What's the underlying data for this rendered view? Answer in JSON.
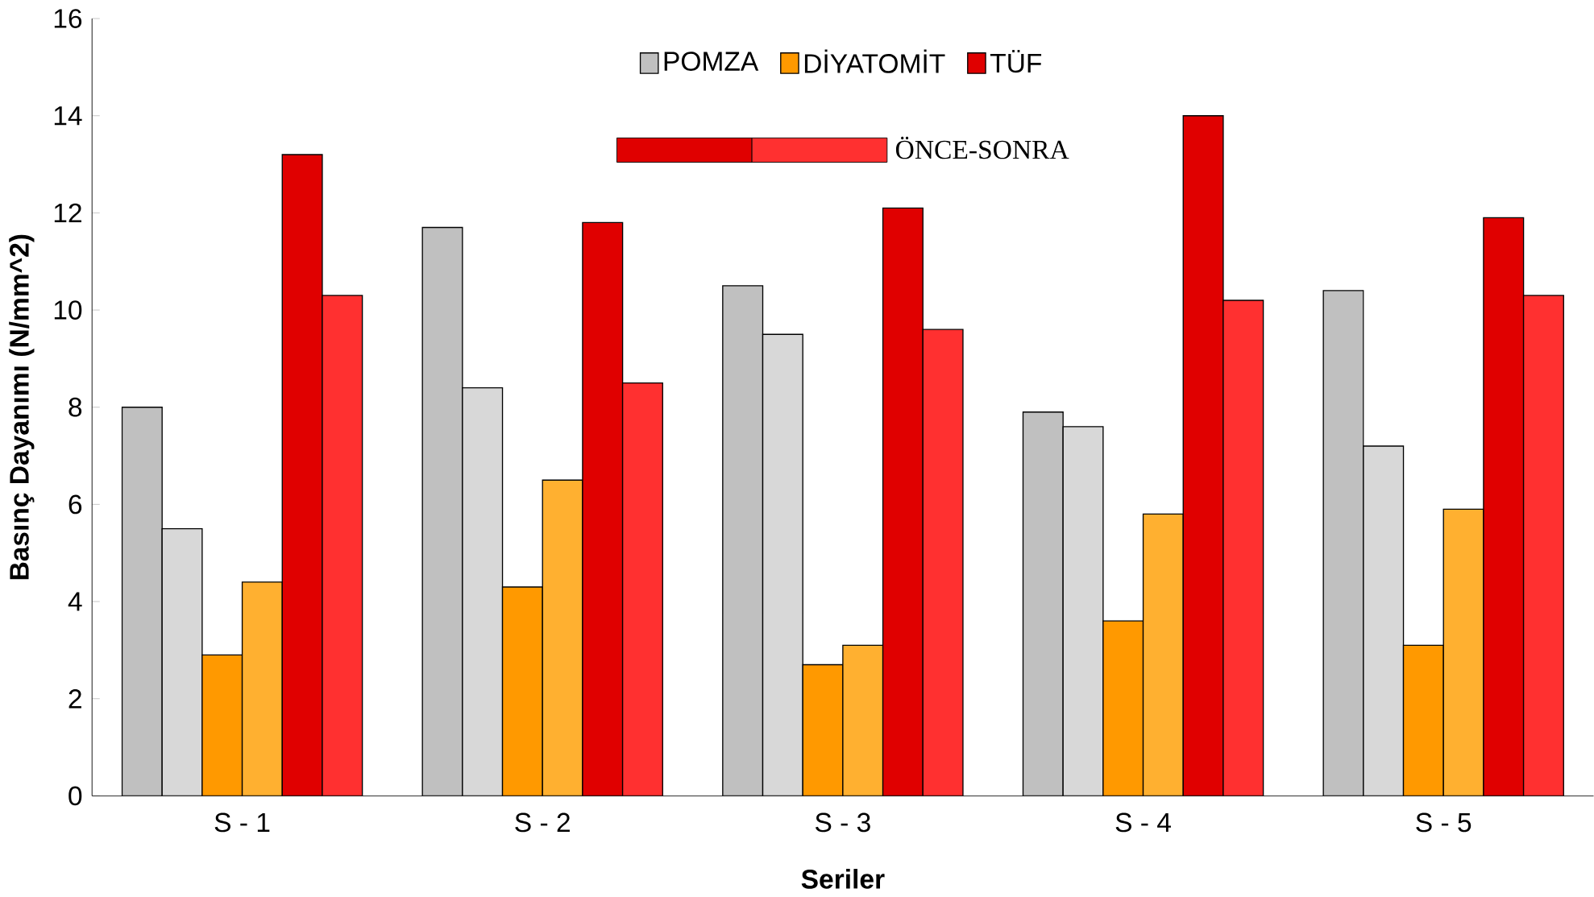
{
  "chart_data": {
    "type": "bar",
    "xlabel": "Seriler",
    "ylabel": "Basınç Dayanımı (N/mm^2)",
    "legend_title": "ÖNCE-SONRA",
    "legend": "top",
    "categories": [
      "S - 1",
      "S - 2",
      "S - 3",
      "S - 4",
      "S - 5"
    ],
    "ylim": [
      0,
      16
    ],
    "yticks": [
      0,
      2,
      4,
      6,
      8,
      10,
      12,
      14,
      16
    ],
    "series": [
      {
        "name": "POMZA",
        "color": "#c0c0c0",
        "values": [
          8.0,
          11.7,
          10.5,
          7.9,
          10.4
        ]
      },
      {
        "color": "#d8d8d8",
        "values": [
          5.5,
          8.4,
          9.5,
          7.6,
          7.2
        ]
      },
      {
        "name": "DİYATOMİT",
        "color": "#ff9900",
        "values": [
          2.9,
          4.3,
          2.7,
          3.6,
          3.1
        ]
      },
      {
        "color": "#ffb030",
        "values": [
          4.4,
          6.5,
          3.1,
          5.8,
          5.9
        ]
      },
      {
        "name": "TÜF",
        "color": "#e00000",
        "values": [
          13.2,
          11.8,
          12.1,
          14.0,
          11.9
        ]
      },
      {
        "color": "#ff3030",
        "values": [
          10.3,
          8.5,
          9.6,
          10.2,
          10.3
        ]
      }
    ]
  }
}
